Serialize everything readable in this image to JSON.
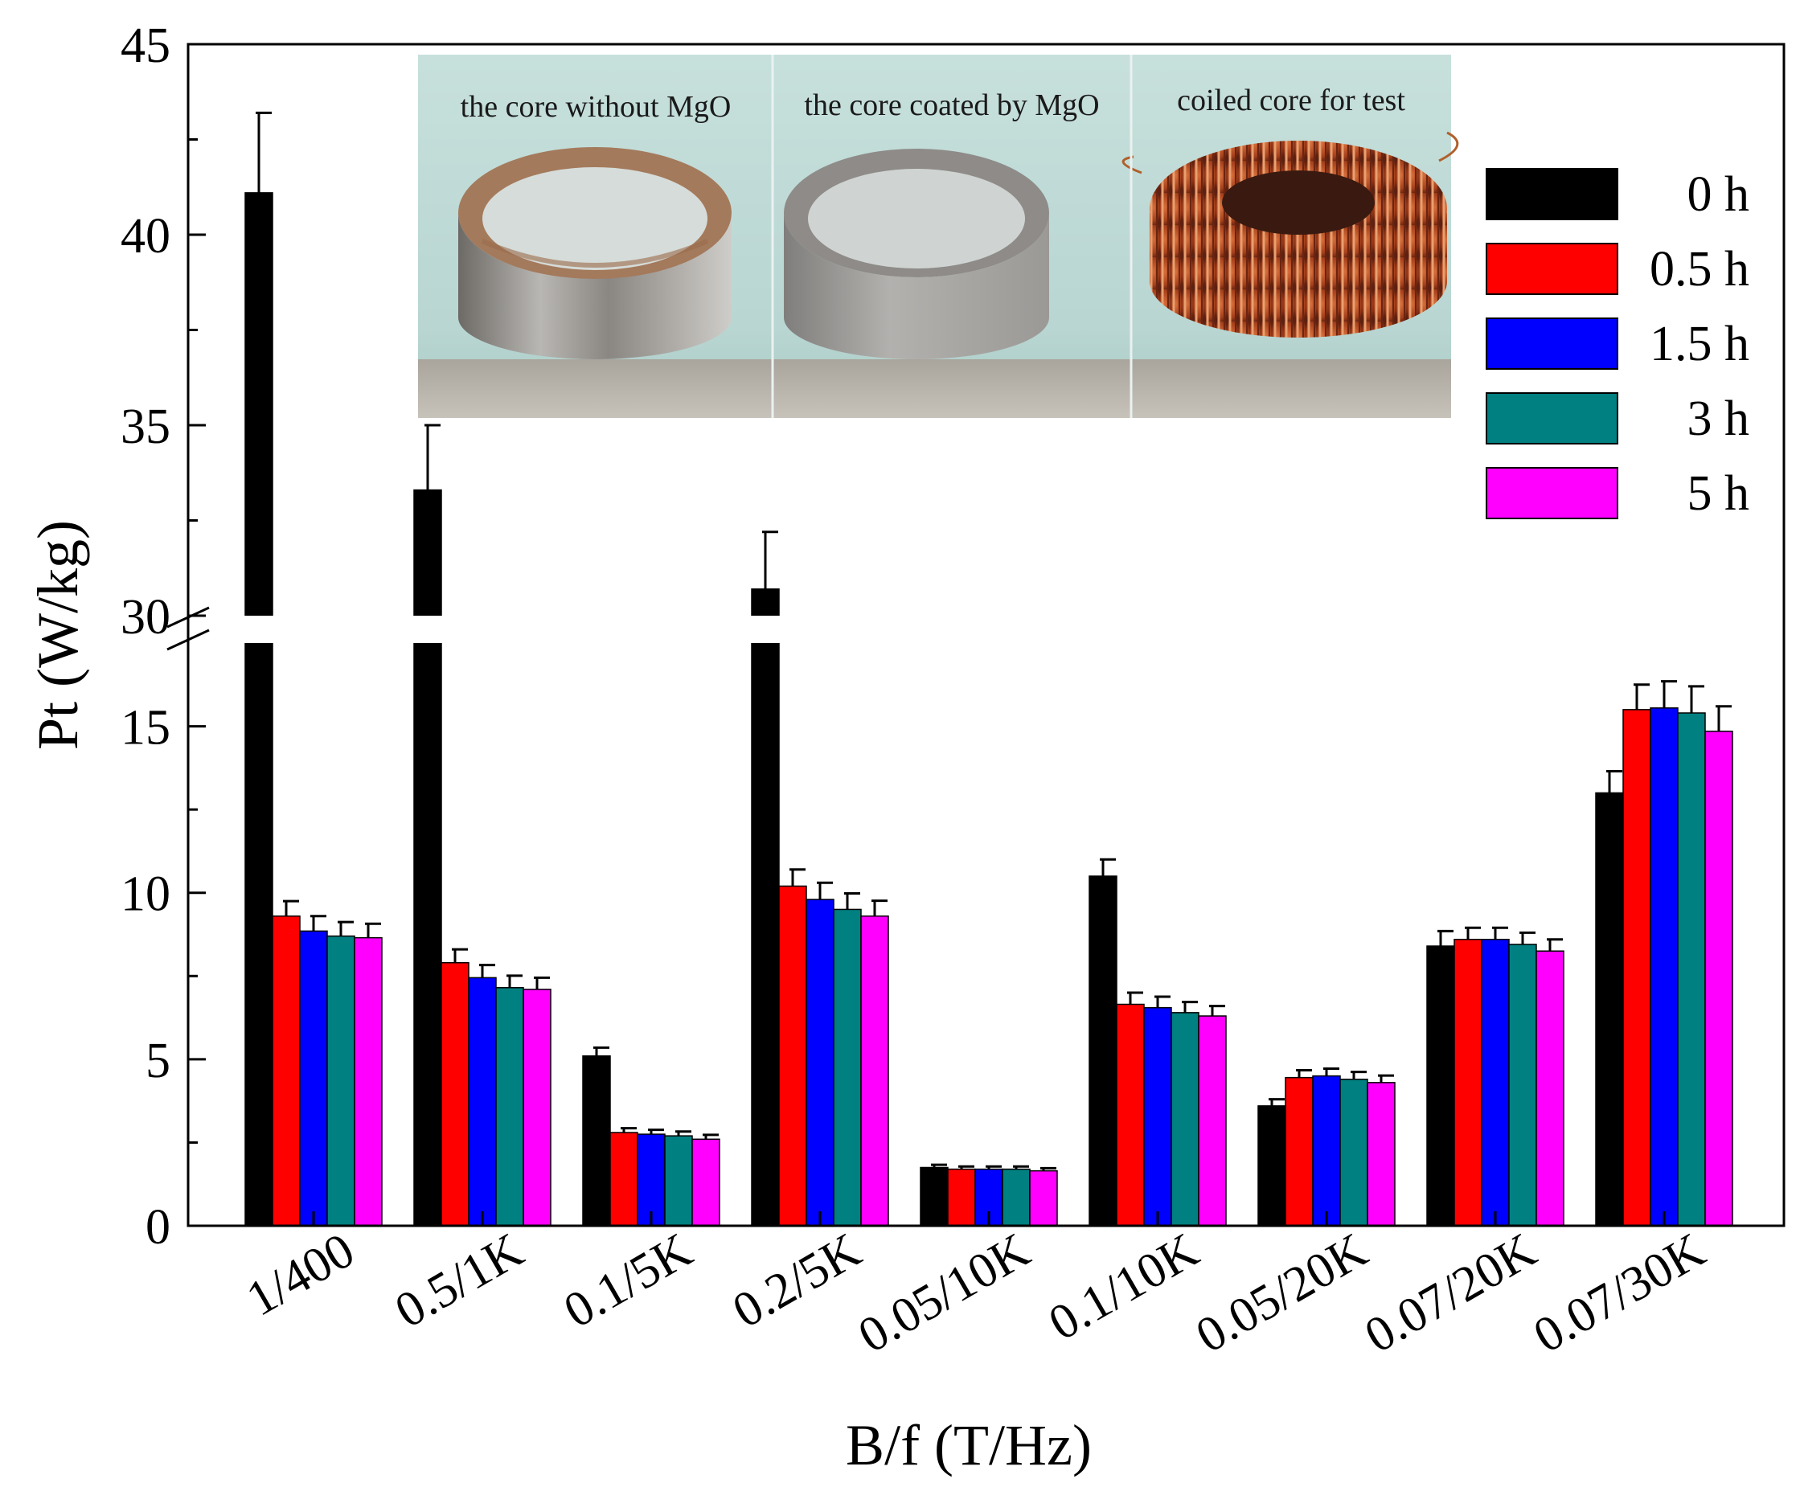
{
  "chart_data": {
    "type": "bar",
    "title": "",
    "xlabel": "B/f (T/Hz)",
    "ylabel": "Pt (W/kg)",
    "categories": [
      "1/400",
      "0.5/1K",
      "0.1/5K",
      "0.2/5K",
      "0.05/10K",
      "0.1/10K",
      "0.05/20K",
      "0.07/20K",
      "0.07/30K"
    ],
    "series": [
      {
        "name": "0 h",
        "color": "#000000",
        "values": [
          41.1,
          33.3,
          5.1,
          30.7,
          1.75,
          10.5,
          3.6,
          8.4,
          13.0
        ],
        "errors": [
          2.1,
          1.7,
          0.25,
          1.5,
          0.08,
          0.5,
          0.2,
          0.45,
          0.65
        ]
      },
      {
        "name": "0.5 h",
        "color": "#ff0000",
        "values": [
          9.3,
          7.9,
          2.8,
          10.2,
          1.7,
          6.65,
          4.45,
          8.6,
          15.5
        ],
        "errors": [
          0.45,
          0.4,
          0.13,
          0.5,
          0.08,
          0.35,
          0.22,
          0.35,
          0.75
        ]
      },
      {
        "name": "1.5 h",
        "color": "#0000ff",
        "values": [
          8.85,
          7.45,
          2.75,
          9.8,
          1.7,
          6.55,
          4.5,
          8.6,
          15.55
        ],
        "errors": [
          0.45,
          0.38,
          0.13,
          0.5,
          0.08,
          0.33,
          0.22,
          0.35,
          0.8
        ]
      },
      {
        "name": "3 h",
        "color": "#008080",
        "values": [
          8.7,
          7.15,
          2.7,
          9.5,
          1.7,
          6.4,
          4.4,
          8.45,
          15.4
        ],
        "errors": [
          0.42,
          0.36,
          0.13,
          0.48,
          0.08,
          0.32,
          0.22,
          0.35,
          0.8
        ]
      },
      {
        "name": "5 h",
        "color": "#ff00ff",
        "values": [
          8.65,
          7.1,
          2.6,
          9.3,
          1.65,
          6.3,
          4.3,
          8.25,
          14.85
        ],
        "errors": [
          0.42,
          0.35,
          0.13,
          0.46,
          0.08,
          0.3,
          0.21,
          0.35,
          0.75
        ]
      }
    ],
    "y_lower_range": [
      0,
      17.5
    ],
    "y_upper_range": [
      30,
      45
    ],
    "y_break": [
      17.5,
      30
    ],
    "y_ticks_lower": [
      0,
      5,
      10,
      15
    ],
    "y_ticks_upper": [
      30,
      35,
      40,
      45
    ],
    "legend_position": "top-right",
    "inset_photo_labels": [
      "the core without MgO",
      "the core coated by MgO",
      "coiled core for test"
    ]
  }
}
